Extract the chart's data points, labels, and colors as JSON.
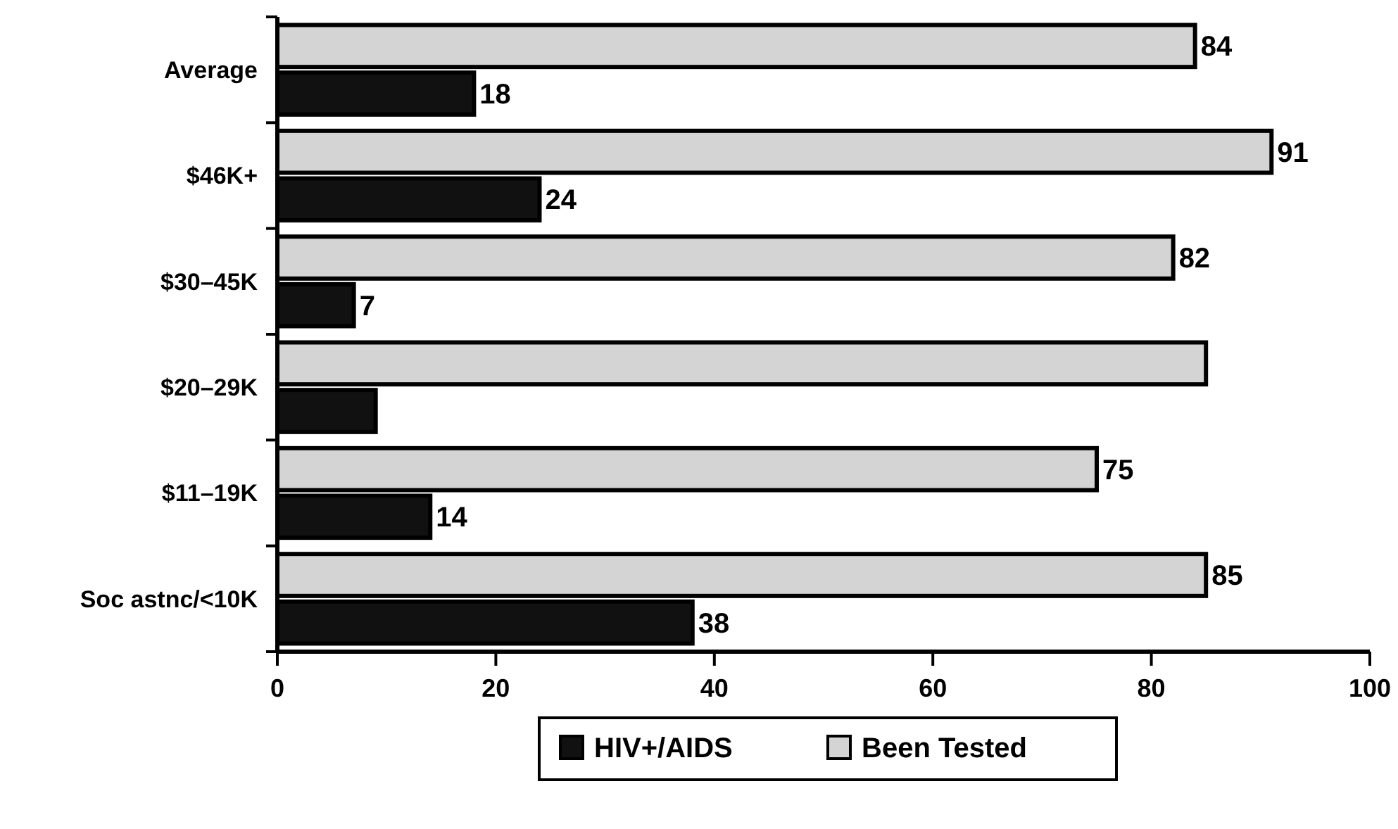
{
  "chart_data": {
    "type": "bar",
    "orientation": "horizontal",
    "categories": [
      "Average",
      "$46K+",
      "$30–45K",
      "$20–29K",
      "$11–19K",
      "Soc astnc/<10K"
    ],
    "series": [
      {
        "name": "HIV+/AIDS",
        "color": "#111111",
        "values": [
          18,
          24,
          7,
          9,
          14,
          38
        ],
        "value_labels": [
          "18",
          "24",
          "7",
          null,
          "14",
          "38"
        ]
      },
      {
        "name": "Been Tested",
        "color": "#d4d4d4",
        "values": [
          84,
          91,
          82,
          85,
          75,
          85
        ],
        "value_labels": [
          "84",
          "91",
          "82",
          null,
          "75",
          "85"
        ]
      }
    ],
    "xlim": [
      0,
      100
    ],
    "xticks": [
      0,
      20,
      40,
      60,
      80,
      100
    ],
    "grid": false,
    "legend": "bottom"
  }
}
